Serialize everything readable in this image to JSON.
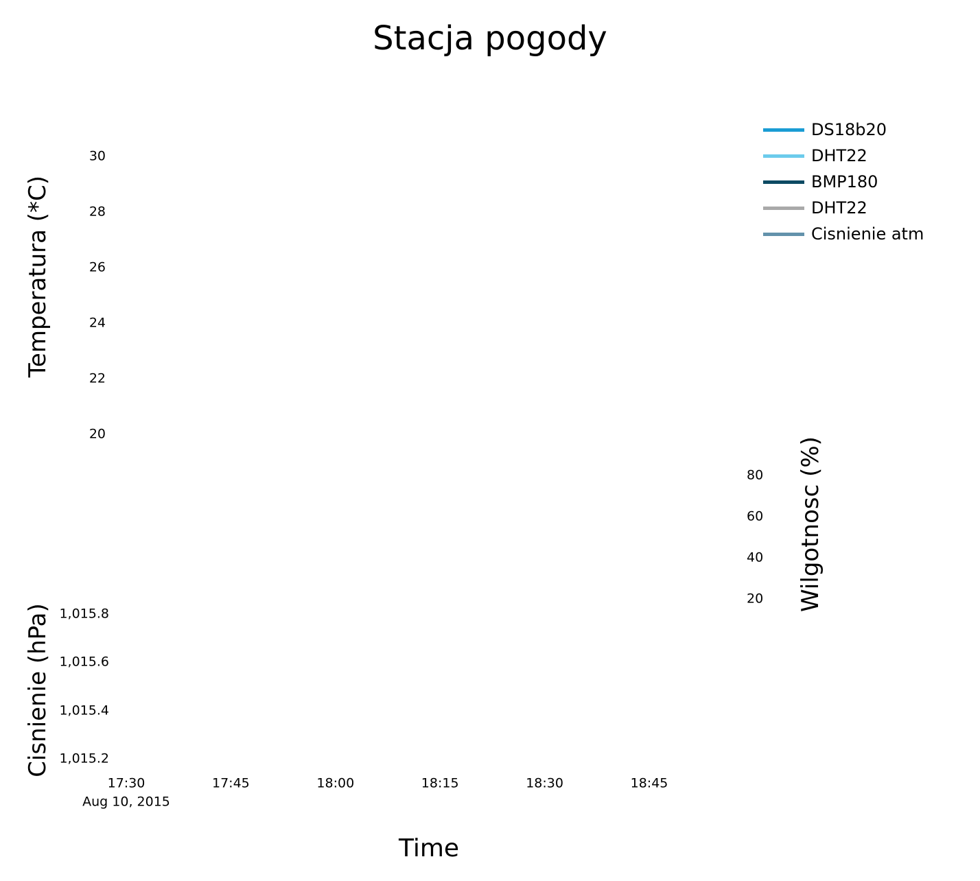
{
  "chart_data": {
    "type": "line",
    "title": "Stacja pogody",
    "xlabel": "Time",
    "x_ticks": [
      "17:30",
      "17:45",
      "18:00",
      "18:15",
      "18:30",
      "18:45"
    ],
    "x_date_label": "Aug 10, 2015",
    "axes": {
      "temperature": {
        "label": "Temperatura (*C)",
        "ticks": [
          "20",
          "22",
          "24",
          "26",
          "28",
          "30"
        ],
        "tick_values": [
          20,
          22,
          24,
          26,
          28,
          30
        ]
      },
      "humidity": {
        "label": "Wilgotnosc (%)",
        "ticks": [
          "20",
          "40",
          "60",
          "80"
        ],
        "tick_values": [
          20,
          40,
          60,
          80
        ]
      },
      "pressure": {
        "label": "Cisnienie (hPa)",
        "ticks": [
          "1,015.2",
          "1,015.4",
          "1,015.6",
          "1,015.8"
        ],
        "tick_values": [
          1015.2,
          1015.4,
          1015.6,
          1015.8
        ]
      }
    },
    "series": [
      {
        "name": "DS18b20",
        "color": "#1a9cd4",
        "values": []
      },
      {
        "name": "DHT22",
        "color": "#6ccbec",
        "values": []
      },
      {
        "name": "BMP180",
        "color": "#0d4a63",
        "values": []
      },
      {
        "name": "DHT22",
        "color": "#a9a9a9",
        "values": []
      },
      {
        "name": "Cisnienie atm",
        "color": "#6392ab",
        "values": []
      }
    ],
    "legend_position": "top-right",
    "grid": false
  }
}
